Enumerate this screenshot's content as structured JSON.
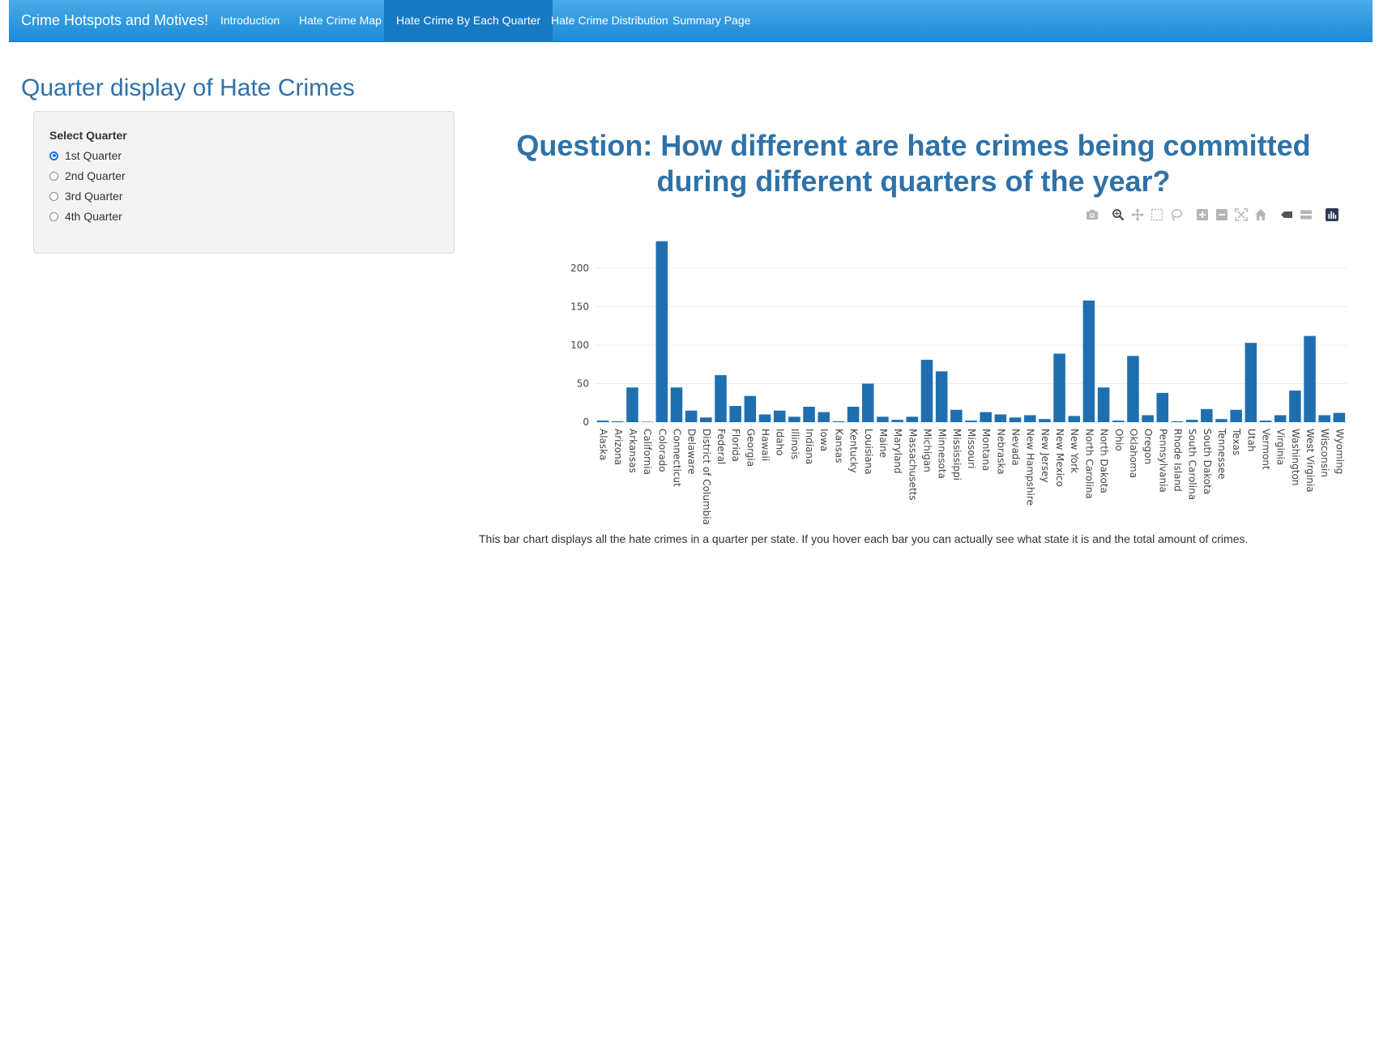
{
  "navbar": {
    "brand": "Crime Hotspots and Motives!",
    "items": [
      {
        "label": "Introduction",
        "active": false
      },
      {
        "label": "Hate Crime Map",
        "active": false
      },
      {
        "label": "Hate Crime By Each Quarter",
        "active": true
      },
      {
        "label": "Hate Crime Distribution",
        "active": false
      },
      {
        "label": "Summary Page",
        "active": false
      }
    ]
  },
  "page": {
    "title": "Quarter display of Hate Crimes",
    "question": "Question: How different are hate crimes being committed during different quarters of the year?",
    "caption": "This bar chart displays all the hate crimes in a quarter per state. If you hover each bar you can actually see what state it is and the total amount of crimes."
  },
  "sidebar": {
    "label": "Select Quarter",
    "options": [
      {
        "label": "1st Quarter",
        "checked": true
      },
      {
        "label": "2nd Quarter",
        "checked": false
      },
      {
        "label": "3rd Quarter",
        "checked": false
      },
      {
        "label": "4th Quarter",
        "checked": false
      }
    ]
  },
  "modebar": {
    "icons": [
      "camera-icon",
      "zoom-icon",
      "pan-icon",
      "box-select-icon",
      "lasso-select-icon",
      "zoom-in-icon",
      "zoom-out-icon",
      "autoscale-icon",
      "reset-axes-icon",
      "hover-closest-icon",
      "hover-compare-icon",
      "plotly-logo-icon"
    ]
  },
  "chart_data": {
    "type": "bar",
    "color": "#1f6fb0",
    "categories": [
      "Alaska",
      "Arizona",
      "Arkansas",
      "California",
      "Colorado",
      "Connecticut",
      "Delaware",
      "District of Columbia",
      "Federal",
      "Florida",
      "Georgia",
      "Hawaii",
      "Idaho",
      "Illinois",
      "Indiana",
      "Iowa",
      "Kansas",
      "Kentucky",
      "Louisiana",
      "Maine",
      "Maryland",
      "Massachusetts",
      "Michigan",
      "Minnesota",
      "Mississippi",
      "Missouri",
      "Montana",
      "Nebraska",
      "Nevada",
      "New Hampshire",
      "New Jersey",
      "New Mexico",
      "New York",
      "North Carolina",
      "North Dakota",
      "Ohio",
      "Oklahoma",
      "Oregon",
      "Pennsylvania",
      "Rhode Island",
      "South Carolina",
      "South Dakota",
      "Tennessee",
      "Texas",
      "Utah",
      "Vermont",
      "Virginia",
      "Washington",
      "West Virginia",
      "Wisconsin",
      "Wyoming"
    ],
    "values": [
      2,
      1,
      45,
      0,
      235,
      45,
      15,
      6,
      61,
      21,
      34,
      10,
      15,
      7,
      20,
      13,
      1,
      20,
      50,
      7,
      3,
      7,
      81,
      66,
      16,
      2,
      13,
      10,
      6,
      9,
      4,
      89,
      8,
      158,
      45,
      2,
      86,
      9,
      38,
      1,
      3,
      17,
      4,
      16,
      103,
      2,
      9,
      41,
      112,
      9,
      12
    ],
    "yticks": [
      0,
      50,
      100,
      150,
      200
    ],
    "ylim": [
      0,
      240
    ],
    "grid": true
  }
}
